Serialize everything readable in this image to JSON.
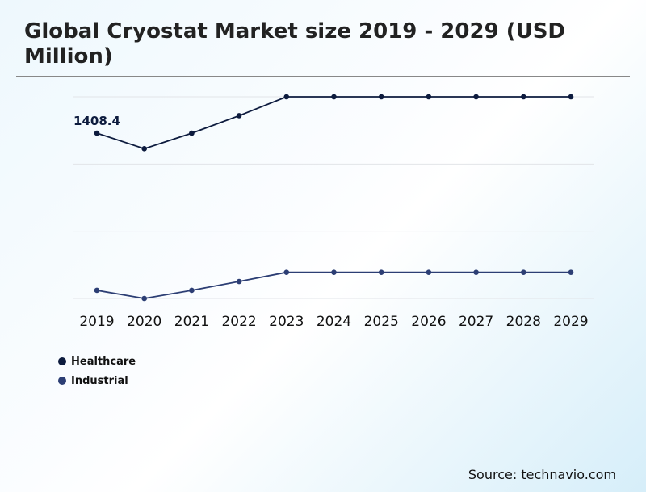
{
  "chart_data": {
    "type": "line",
    "title": "Global Cryostat Market size 2019 - 2029 (USD Million)",
    "x": [
      "2019",
      "2020",
      "2021",
      "2022",
      "2023",
      "2024",
      "2025",
      "2026",
      "2027",
      "2028",
      "2029"
    ],
    "series": [
      {
        "name": "Healthcare",
        "color": "#0d1b3e",
        "values": [
          1408.4,
          1276,
          1408,
          1557,
          1718,
          1718,
          1718,
          1718,
          1718,
          1718,
          1718
        ]
      },
      {
        "name": "Industrial",
        "color": "#2c3e74",
        "values": [
          69,
          0,
          69,
          144,
          222,
          222,
          222,
          222,
          222,
          222,
          222
        ]
      }
    ],
    "data_labels": [
      {
        "series": "Healthcare",
        "x": "2019",
        "text": "1408.4"
      }
    ],
    "ylim": [
      0,
      1718
    ],
    "grid": true,
    "legend": "bottom-left",
    "y_tick_labels_shown": false
  },
  "source": "Source: technavio.com"
}
